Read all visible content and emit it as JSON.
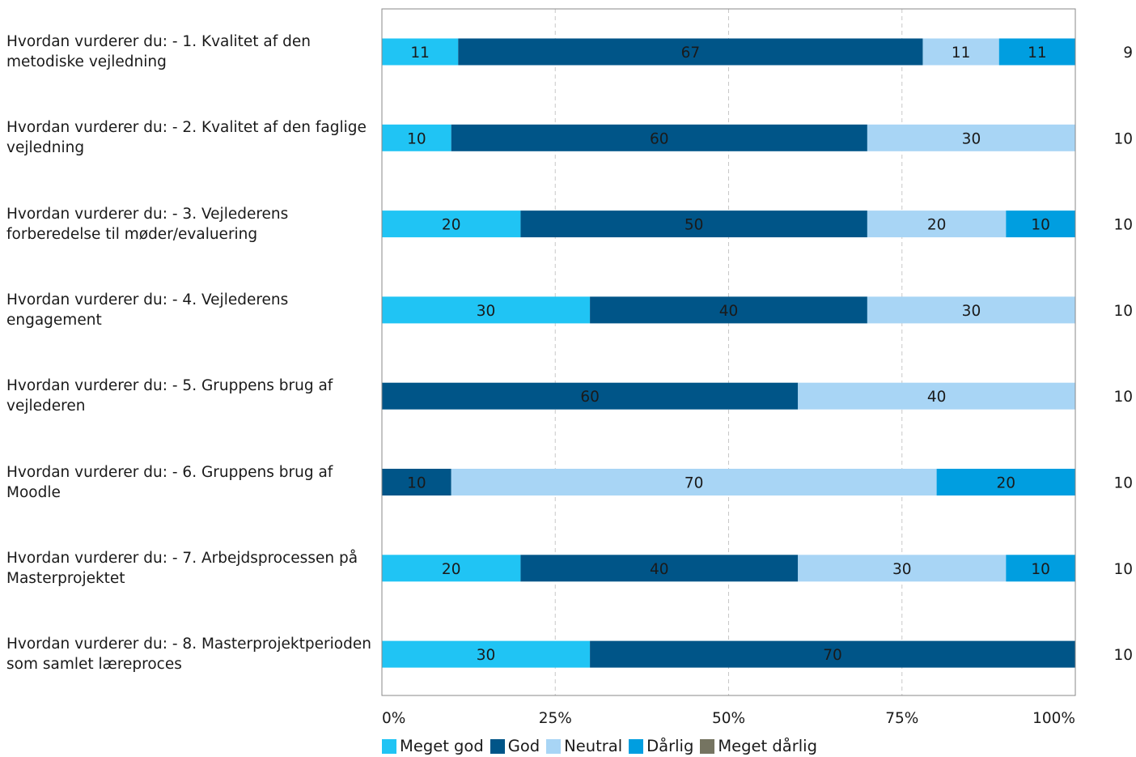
{
  "chart_data": {
    "type": "bar",
    "orientation": "horizontal",
    "stacked": "percent",
    "categories": [
      "Hvordan vurderer du: - 1. Kvalitet af den metodiske vejledning",
      "Hvordan vurderer du: - 2. Kvalitet af den faglige vejledning",
      "Hvordan vurderer du: - 3. Vejlederens forberedelse til møder/evaluering",
      "Hvordan vurderer du: - 4. Vejlederens engagement",
      "Hvordan vurderer du: - 5. Gruppens brug af vejlederen",
      "Hvordan vurderer du: - 6. Gruppens brug af Moodle",
      "Hvordan vurderer du: - 7. Arbejdsprocessen på Masterprojektet",
      "Hvordan vurderer du: - 8. Masterprojektperioden som samlet læreproces"
    ],
    "series": [
      {
        "name": "Meget god",
        "color": "#20c4f4",
        "values": [
          11,
          10,
          20,
          30,
          0,
          0,
          20,
          30
        ]
      },
      {
        "name": "God",
        "color": "#005588",
        "values": [
          67,
          60,
          50,
          40,
          60,
          10,
          40,
          70
        ]
      },
      {
        "name": "Neutral",
        "color": "#a8d5f5",
        "values": [
          11,
          30,
          20,
          30,
          40,
          70,
          30,
          0
        ]
      },
      {
        "name": "Dårlig",
        "color": "#009ee0",
        "values": [
          11,
          0,
          10,
          0,
          0,
          20,
          10,
          0
        ]
      },
      {
        "name": "Meget dårlig",
        "color": "#757461",
        "values": [
          0,
          0,
          0,
          0,
          0,
          0,
          0,
          0
        ]
      }
    ],
    "n": [
      "9",
      "10",
      "10",
      "10",
      "10",
      "10",
      "10",
      "10"
    ],
    "x_ticks": [
      "0%",
      "25%",
      "50%",
      "75%",
      "100%"
    ],
    "xlim": [
      0,
      100
    ],
    "grid": "vertical dashed",
    "legend": "bottom"
  }
}
